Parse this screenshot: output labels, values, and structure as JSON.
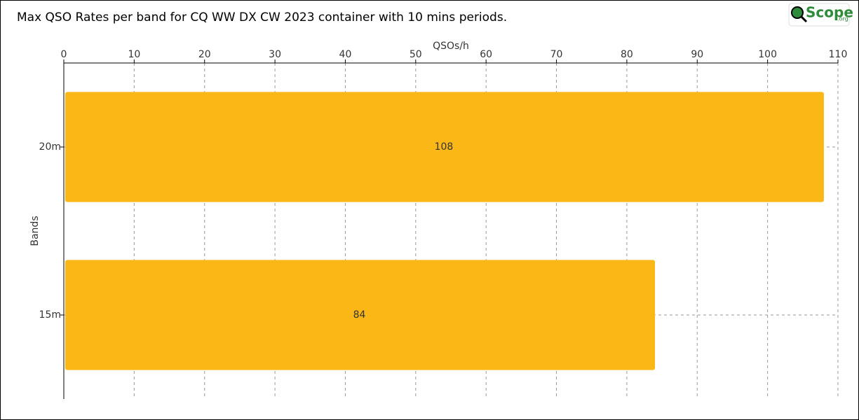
{
  "chart_data": {
    "type": "barh",
    "title": "Max QSO Rates per band for CQ WW DX CW 2023 container with 10 mins periods.",
    "x_label": "QSOs/h",
    "y_label": "Bands",
    "categories": [
      "20m",
      "15m"
    ],
    "values": [
      108,
      84
    ],
    "color": "#fbb715",
    "xlim": [
      0,
      110
    ],
    "xticks": [
      0,
      10,
      20,
      30,
      40,
      50,
      60,
      70,
      80,
      90,
      100,
      110
    ],
    "grid": true
  },
  "logo": {
    "text": "Scope",
    "suffix": ".org"
  }
}
